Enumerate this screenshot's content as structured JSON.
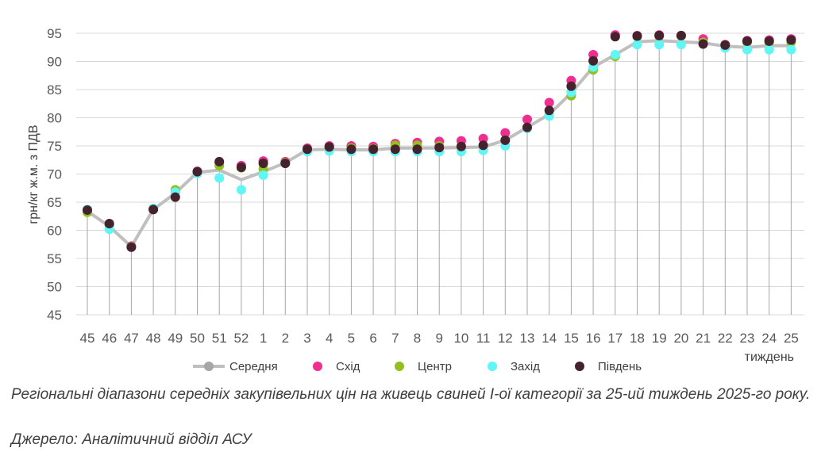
{
  "chart_data": {
    "type": "line",
    "xlabel": "тиждень",
    "ylabel": "грн/кг ж.м. з ПДВ",
    "ylim": [
      45,
      95
    ],
    "yticks": [
      45,
      50,
      55,
      60,
      65,
      70,
      75,
      80,
      85,
      90,
      95
    ],
    "grid": true,
    "legend_position": "bottom",
    "categories": [
      "45",
      "46",
      "47",
      "48",
      "49",
      "50",
      "51",
      "52",
      "1",
      "2",
      "3",
      "4",
      "5",
      "6",
      "7",
      "8",
      "9",
      "10",
      "11",
      "12",
      "13",
      "14",
      "15",
      "16",
      "17",
      "18",
      "19",
      "20",
      "21",
      "22",
      "23",
      "24",
      "25"
    ],
    "series": [
      {
        "name": "Середня",
        "type": "line",
        "color": "#bfbfbf",
        "values": [
          63.4,
          60.7,
          57.1,
          63.7,
          66.6,
          70.3,
          70.7,
          69.0,
          70.4,
          72.0,
          74.3,
          74.4,
          74.3,
          74.3,
          74.6,
          74.6,
          74.6,
          74.7,
          74.8,
          76.0,
          78.3,
          80.6,
          84.4,
          89.0,
          91.2,
          93.5,
          93.7,
          93.5,
          93.3,
          92.7,
          92.5,
          92.8,
          92.8
        ]
      },
      {
        "name": "Схід",
        "type": "scatter",
        "color": "#ef2f8f",
        "values": [
          63.6,
          61.0,
          57.2,
          63.8,
          66.8,
          70.5,
          72.0,
          71.5,
          72.3,
          72.2,
          74.6,
          75.0,
          75.0,
          74.9,
          75.4,
          75.6,
          75.8,
          75.9,
          76.3,
          77.3,
          79.7,
          82.7,
          86.6,
          91.2,
          94.7,
          94.6,
          94.7,
          94.6,
          94.0,
          93.0,
          93.7,
          93.8,
          94.0
        ]
      },
      {
        "name": "Центр",
        "type": "scatter",
        "color": "#92c01f",
        "values": [
          63.2,
          61.0,
          57.1,
          63.8,
          67.2,
          70.4,
          71.5,
          71.1,
          70.9,
          72.0,
          74.4,
          74.7,
          74.6,
          74.5,
          75.1,
          75.1,
          75.0,
          74.9,
          75.0,
          76.0,
          78.2,
          80.4,
          83.9,
          88.5,
          90.9,
          94.4,
          94.5,
          94.5,
          93.4,
          92.9,
          93.4,
          93.4,
          93.4
        ]
      },
      {
        "name": "Захід",
        "type": "scatter",
        "color": "#5ff6f5",
        "values": [
          63.7,
          60.2,
          57.0,
          63.9,
          66.8,
          70.1,
          69.3,
          67.2,
          69.8,
          71.9,
          74.0,
          74.1,
          74.0,
          74.0,
          74.0,
          74.0,
          74.0,
          74.0,
          74.2,
          75.0,
          78.1,
          80.3,
          84.5,
          89.0,
          91.2,
          93.0,
          93.0,
          93.0,
          93.1,
          92.4,
          92.1,
          92.1,
          92.1
        ]
      },
      {
        "name": "Південь",
        "type": "scatter",
        "color": "#44232f",
        "values": [
          63.6,
          61.2,
          57.0,
          63.7,
          65.9,
          70.4,
          72.2,
          71.2,
          71.9,
          71.9,
          74.4,
          74.8,
          74.4,
          74.4,
          74.4,
          74.4,
          74.7,
          74.9,
          75.1,
          76.0,
          78.3,
          81.3,
          85.6,
          90.1,
          94.4,
          94.5,
          94.6,
          94.6,
          93.1,
          92.9,
          93.6,
          93.6,
          93.8
        ]
      }
    ]
  },
  "caption": {
    "line1": "Регіональні діапазони середніх закупівельних цін на живець свиней І-ої категорії за 25-ий тиждень 2025-го року.",
    "line2": "Джерело: Аналітичний відділ АСУ"
  }
}
